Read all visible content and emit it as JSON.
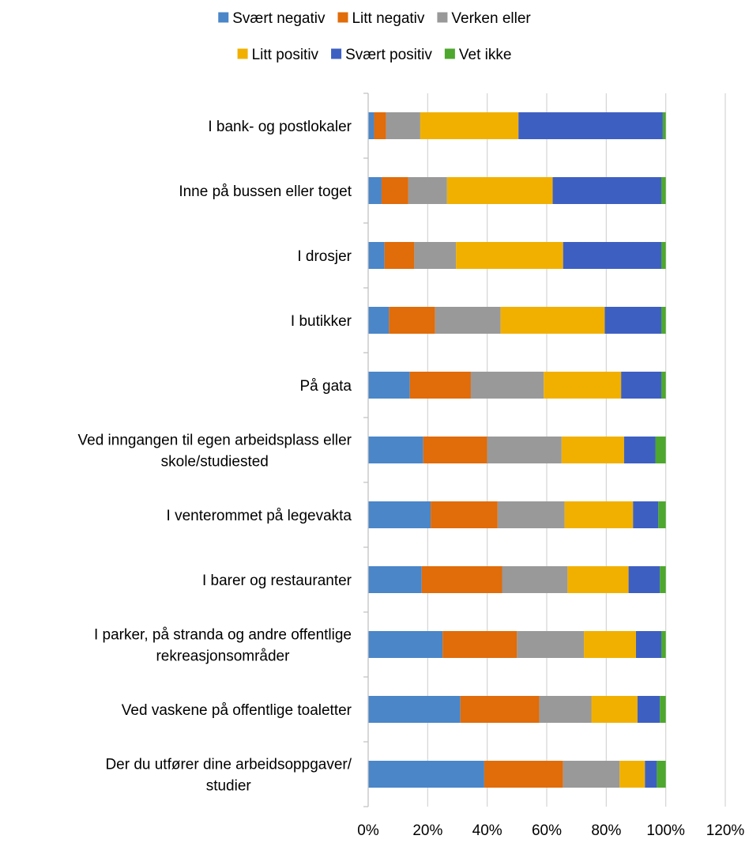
{
  "chart_data": {
    "type": "bar",
    "orientation": "horizontal",
    "stacked": true,
    "title": "",
    "xlabel": "",
    "ylabel": "",
    "xlim": [
      0,
      120
    ],
    "x_ticks": [
      "0%",
      "20%",
      "40%",
      "60%",
      "80%",
      "100%",
      "120%"
    ],
    "x_tick_values": [
      0,
      20,
      40,
      60,
      80,
      100,
      120
    ],
    "grid": "vertical",
    "legend_position": "top",
    "categories": [
      [
        "I bank- og postlokaler"
      ],
      [
        "Inne på bussen eller toget"
      ],
      [
        "I drosjer"
      ],
      [
        "I butikker"
      ],
      [
        "På gata"
      ],
      [
        "Ved inngangen til egen arbeidsplass eller",
        "skole/studiested"
      ],
      [
        "I venterommet på legevakta"
      ],
      [
        "I barer og restauranter"
      ],
      [
        "I parker, på stranda og andre offentlige",
        "rekreasjonsområder"
      ],
      [
        "Ved vaskene på offentlige toaletter"
      ],
      [
        "Der du utfører dine arbeidsoppgaver/",
        "studier"
      ]
    ],
    "series": [
      {
        "name": "Svært negativ",
        "color": "#4a86c8",
        "values": [
          2,
          4.5,
          5.5,
          7,
          14,
          18.5,
          21,
          18,
          25,
          31,
          39
        ]
      },
      {
        "name": "Litt negativ",
        "color": "#e06c0a",
        "values": [
          4,
          9,
          10,
          15.5,
          20.5,
          21.5,
          22.5,
          27,
          25,
          26.5,
          26.5
        ]
      },
      {
        "name": "Verken eller",
        "color": "#999999",
        "values": [
          11.5,
          13,
          14,
          22,
          24.5,
          25,
          22.5,
          22,
          22.5,
          17.5,
          19
        ]
      },
      {
        "name": "Litt positiv",
        "color": "#f1b000",
        "values": [
          33,
          35.5,
          36,
          35,
          26,
          21,
          23,
          20.5,
          17.5,
          15.5,
          8.5
        ]
      },
      {
        "name": "Svært positiv",
        "color": "#3e5fc2",
        "values": [
          48.5,
          36.5,
          33,
          19,
          13.5,
          10.5,
          8.5,
          10.5,
          8.5,
          7.5,
          4
        ]
      },
      {
        "name": "Vet ikke",
        "color": "#4ea72e",
        "values": [
          1,
          1.5,
          1.5,
          1.5,
          1.5,
          3.5,
          2.5,
          2,
          1.5,
          2,
          3
        ]
      }
    ]
  }
}
